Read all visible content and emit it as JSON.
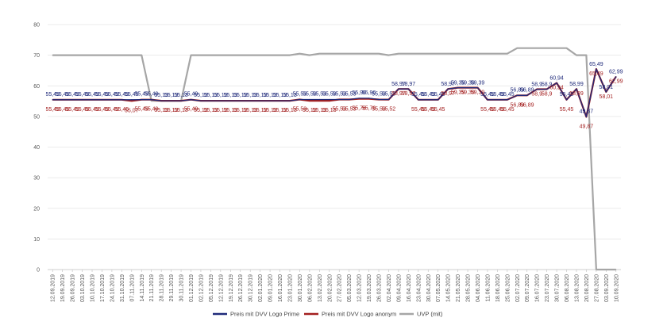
{
  "chart_data": {
    "type": "line",
    "title": "",
    "xlabel": "",
    "ylabel": "",
    "ylim": [
      0,
      80
    ],
    "y_ticks": [
      "0",
      "10",
      "20",
      "30",
      "40",
      "50",
      "60",
      "70",
      "80"
    ],
    "grid": true,
    "legend_position": "bottom",
    "categories": [
      "12.09.2019",
      "19.09.2019",
      "26.09.2019",
      "03.10.2019",
      "10.10.2019",
      "17.10.2019",
      "24.10.2019",
      "31.10.2019",
      "07.11.2019",
      "14.11.2019",
      "21.11.2019",
      "28.11.2019",
      "29.11.2019",
      "30.11.2019",
      "01.12.2019",
      "02.12.2019",
      "05.12.2019",
      "12.12.2019",
      "19.12.2019",
      "26.12.2019",
      "30.12.2019",
      "02.01.2020",
      "09.01.2020",
      "16.01.2020",
      "23.01.2020",
      "30.01.2020",
      "06.02.2020",
      "13.02.2020",
      "20.02.2020",
      "27.02.2020",
      "05.03.2020",
      "12.03.2020",
      "19.03.2020",
      "26.03.2020",
      "02.04.2020",
      "09.04.2020",
      "16.04.2020",
      "23.04.2020",
      "30.04.2020",
      "07.05.2020",
      "14.05.2020",
      "21.05.2020",
      "28.05.2020",
      "04.06.2020",
      "11.06.2020",
      "18.06.2020",
      "25.06.2020",
      "02.07.2020",
      "09.07.2020",
      "16.07.2020",
      "23.07.2020",
      "30.07.2020",
      "06.08.2020",
      "13.08.2020",
      "20.08.2020",
      "27.08.2020",
      "03.09.2020",
      "10.09.2020"
    ],
    "series": [
      {
        "name": "Preis mit DVV Logo Prime",
        "color": "#1f2a7a",
        "label_values": [
          "55,45",
          "55,45",
          "55,45",
          "55,45",
          "55,45",
          "55,45",
          "55,45",
          "55,45",
          "55,45",
          "55,49",
          "55,49",
          "55,13",
          "55,13",
          "55,13",
          "55,49",
          "55,13",
          "55,13",
          "55,13",
          "55,13",
          "55,13",
          "55,13",
          "55,13",
          "55,13",
          "55,13",
          "55,13",
          "55,53",
          "55,53",
          "55,53",
          "55,53",
          "55,53",
          "55,53",
          "55,96",
          "55,96",
          "55,53",
          "55,53",
          "58,97",
          "58,97",
          "55,45",
          "55,45",
          "55,45",
          "58,97",
          "59,39",
          "59,39",
          "59,39",
          "55,45",
          "55,45",
          "55,45",
          "56,89",
          "56,89",
          "58,9",
          "58,9",
          "60,94",
          "55,45",
          "58,99",
          "49,87",
          "65,49",
          "58,01",
          "62,99"
        ],
        "values": [
          55.45,
          55.45,
          55.45,
          55.45,
          55.45,
          55.45,
          55.45,
          55.45,
          55.45,
          55.49,
          55.49,
          55.13,
          55.13,
          55.13,
          55.49,
          55.13,
          55.13,
          55.13,
          55.13,
          55.13,
          55.13,
          55.13,
          55.13,
          55.13,
          55.13,
          55.53,
          55.53,
          55.53,
          55.53,
          55.53,
          55.53,
          55.96,
          55.96,
          55.53,
          55.53,
          58.97,
          58.97,
          55.45,
          55.45,
          55.45,
          58.97,
          59.39,
          59.39,
          59.39,
          55.45,
          55.45,
          55.45,
          56.89,
          56.89,
          58.9,
          58.9,
          60.94,
          55.45,
          58.99,
          49.87,
          65.49,
          58.01,
          62.99
        ]
      },
      {
        "name": "Preis mit DVV Logo anonym",
        "color": "#a31f1f",
        "label_values": [
          "55,45",
          "55,45",
          "55,45",
          "55,45",
          "55,45",
          "55,45",
          "55,45",
          "55,45",
          "55,07",
          "55,49",
          "55,49",
          "55,13",
          "55,13",
          "55,13",
          "55,49",
          "55,13",
          "55,13",
          "55,13",
          "55,13",
          "55,13",
          "55,13",
          "55,13",
          "55,13",
          "55,13",
          "55,13",
          "55,53",
          "55,13",
          "55,13",
          "55,13",
          "55,53",
          "55,53",
          "55,76",
          "55,76",
          "55,53",
          "55,52",
          "58,97",
          "58,97",
          "55,45",
          "55,45",
          "55,45",
          "58,97",
          "59,39",
          "59,39",
          "59,39",
          "55,45",
          "55,45",
          "55,45",
          "56,89",
          "56,89",
          "58,9",
          "58,9",
          "60,94",
          "55,45",
          "58,99",
          "49,87",
          "65,49",
          "58,01",
          "62,99"
        ],
        "values": [
          55.45,
          55.45,
          55.45,
          55.45,
          55.45,
          55.45,
          55.45,
          55.45,
          55.07,
          55.49,
          55.49,
          55.13,
          55.13,
          55.13,
          55.49,
          55.13,
          55.13,
          55.13,
          55.13,
          55.13,
          55.13,
          55.13,
          55.13,
          55.13,
          55.13,
          55.53,
          55.13,
          55.13,
          55.13,
          55.53,
          55.53,
          55.76,
          55.76,
          55.53,
          55.52,
          58.97,
          58.97,
          55.45,
          55.45,
          55.45,
          58.97,
          59.39,
          59.39,
          59.39,
          55.45,
          55.45,
          55.45,
          56.89,
          56.89,
          58.9,
          58.9,
          60.94,
          55.45,
          58.99,
          49.87,
          65.49,
          58.01,
          62.99
        ]
      },
      {
        "name": "UVP (mit)",
        "color": "#a6a6a6",
        "values": [
          70,
          70,
          70,
          70,
          70,
          70,
          70,
          70,
          70,
          70,
          55.1,
          55.1,
          55.1,
          55.1,
          70,
          70,
          70,
          70,
          70,
          70,
          70,
          70,
          70,
          70,
          70,
          70.5,
          70,
          70.5,
          70.5,
          70.5,
          70.5,
          70.5,
          70.5,
          70.5,
          70,
          70.5,
          70.5,
          70.5,
          70.5,
          70.5,
          70.5,
          70.5,
          70.5,
          70.5,
          70.5,
          70.5,
          70.5,
          72.3,
          72.3,
          72.3,
          72.3,
          72.3,
          72.3,
          70,
          70,
          0,
          0,
          0
        ]
      }
    ]
  }
}
